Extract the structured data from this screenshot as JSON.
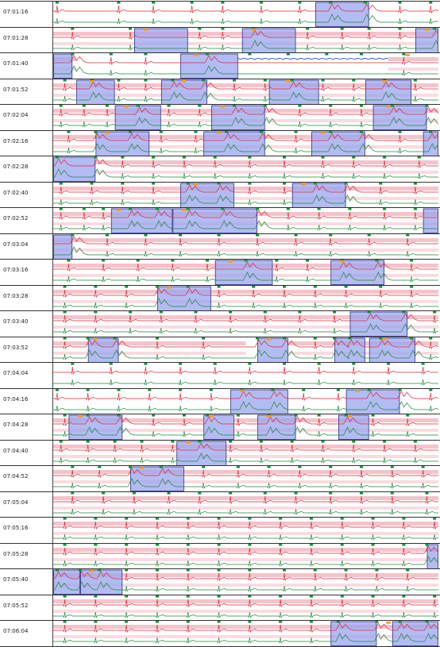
{
  "colors": {
    "background": "#ffffff",
    "pink_band": "#f6c3cb",
    "red_trace": "#e02a35",
    "green_trace": "#1e8a3a",
    "blue_trace": "#2438c8",
    "highlight_fill": "#9aa4ef",
    "highlight_border": "#2a2f8c",
    "beat_marker": "#0a9a35",
    "event_marker": "#f59a1a"
  },
  "rows": [
    {
      "time": "07:01:16",
      "beats": [
        0.01,
        0.17,
        0.26,
        0.36,
        0.44,
        0.54,
        0.64,
        0.72,
        0.81,
        0.9,
        0.98
      ],
      "highlights": [
        [
          0.68,
          0.82
        ]
      ],
      "events": [],
      "bands": []
    },
    {
      "time": "07:01:28",
      "beats": [
        0.05,
        0.2,
        0.38,
        0.44,
        0.52,
        0.66,
        0.75,
        0.82,
        0.9,
        0.99
      ],
      "highlights": [
        [
          0.21,
          0.35
        ],
        [
          0.49,
          0.63
        ],
        [
          0.94,
          1.0
        ]
      ],
      "events": [
        0.24,
        0.52,
        0.97
      ],
      "bands": [
        [
          0,
          1
        ]
      ]
    },
    {
      "time": "07:01:40",
      "beats": [
        0.05,
        0.15,
        0.24,
        0.4,
        0.51,
        0.61,
        0.71,
        0.8,
        0.91
      ],
      "highlights": [
        [
          0,
          0.05
        ],
        [
          0.33,
          0.48
        ]
      ],
      "events": [
        0.37,
        0.92
      ],
      "bands": [
        [
          0,
          0.06
        ],
        [
          0.87,
          1
        ]
      ],
      "flat": [
        0.48,
        0.87
      ]
    },
    {
      "time": "07:01:52",
      "beats": [
        0.03,
        0.1,
        0.17,
        0.24,
        0.31,
        0.39,
        0.47,
        0.55,
        0.62,
        0.7,
        0.78,
        0.86,
        0.94
      ],
      "highlights": [
        [
          0.06,
          0.16
        ],
        [
          0.28,
          0.4
        ],
        [
          0.56,
          0.69
        ],
        [
          0.81,
          0.93
        ]
      ],
      "events": [
        0.1,
        0.34,
        0.61,
        0.86
      ],
      "bands": [
        [
          0,
          1
        ]
      ]
    },
    {
      "time": "07:02:04",
      "beats": [
        0.02,
        0.08,
        0.14,
        0.22,
        0.3,
        0.38,
        0.47,
        0.55,
        0.64,
        0.72,
        0.8,
        0.88,
        0.97
      ],
      "highlights": [
        [
          0.16,
          0.28
        ],
        [
          0.41,
          0.55
        ],
        [
          0.83,
          0.97
        ]
      ],
      "events": [
        0.19,
        0.44,
        0.87
      ],
      "bands": [
        [
          0,
          1
        ]
      ]
    },
    {
      "time": "07:02:16",
      "beats": [
        0.04,
        0.11,
        0.2,
        0.28,
        0.37,
        0.45,
        0.54,
        0.63,
        0.72,
        0.8,
        0.9,
        0.98
      ],
      "highlights": [
        [
          0.11,
          0.25
        ],
        [
          0.39,
          0.55
        ],
        [
          0.67,
          0.81
        ],
        [
          0.96,
          1.0
        ]
      ],
      "events": [
        0.14,
        0.43,
        0.7
      ],
      "bands": [
        [
          0,
          1
        ]
      ]
    },
    {
      "time": "07:02:28",
      "beats": [
        0.01,
        0.11,
        0.18,
        0.26,
        0.34,
        0.42,
        0.51,
        0.6,
        0.7,
        0.78,
        0.86,
        0.95
      ],
      "highlights": [
        [
          0,
          0.11
        ]
      ],
      "events": [],
      "bands": [
        [
          0.11,
          1
        ]
      ]
    },
    {
      "time": "07:02:40",
      "beats": [
        0.02,
        0.1,
        0.18,
        0.26,
        0.35,
        0.43,
        0.51,
        0.6,
        0.68,
        0.76,
        0.85,
        0.94
      ],
      "highlights": [
        [
          0.33,
          0.47
        ],
        [
          0.62,
          0.76
        ]
      ],
      "events": [
        0.37,
        0.65
      ],
      "bands": [
        [
          0,
          1
        ]
      ]
    },
    {
      "time": "07:02:52",
      "beats": [
        0.02,
        0.08,
        0.13,
        0.2,
        0.27,
        0.35,
        0.44,
        0.53,
        0.61,
        0.69,
        0.77,
        0.86,
        0.94
      ],
      "highlights": [
        [
          0.15,
          0.31
        ],
        [
          0.31,
          0.53
        ],
        [
          0.96,
          1.0
        ]
      ],
      "events": [
        0.17,
        0.34
      ],
      "bands": [
        [
          0,
          1
        ]
      ]
    },
    {
      "time": "07:03:04",
      "beats": [
        0.05,
        0.14,
        0.24,
        0.33,
        0.43,
        0.53,
        0.63,
        0.72,
        0.82,
        0.92
      ],
      "highlights": [
        [
          0,
          0.05
        ]
      ],
      "events": [],
      "bands": [
        [
          0,
          1
        ]
      ]
    },
    {
      "time": "07:03:16",
      "beats": [
        0.04,
        0.13,
        0.22,
        0.31,
        0.4,
        0.5,
        0.58,
        0.66,
        0.75,
        0.84,
        0.93
      ],
      "highlights": [
        [
          0.42,
          0.57
        ],
        [
          0.72,
          0.86
        ]
      ],
      "events": [
        0.46,
        0.75
      ],
      "bands": [
        [
          0,
          1
        ]
      ]
    },
    {
      "time": "07:03:28",
      "beats": [
        0.03,
        0.11,
        0.19,
        0.27,
        0.35,
        0.43,
        0.52,
        0.6,
        0.68,
        0.76,
        0.85,
        0.93
      ],
      "highlights": [
        [
          0.27,
          0.41
        ]
      ],
      "events": [
        0.3
      ],
      "bands": [
        [
          0,
          1
        ]
      ]
    },
    {
      "time": "07:03:40",
      "beats": [
        0.03,
        0.11,
        0.2,
        0.28,
        0.37,
        0.46,
        0.55,
        0.64,
        0.73,
        0.82,
        0.91,
        0.99
      ],
      "highlights": [
        [
          0.77,
          0.92
        ]
      ],
      "events": [],
      "bands": [
        [
          0,
          1
        ]
      ]
    },
    {
      "time": "07:03:52",
      "beats": [
        0.03,
        0.09,
        0.16,
        0.27,
        0.39,
        0.53,
        0.6,
        0.68,
        0.73,
        0.77,
        0.85,
        0.93,
        0.98
      ],
      "highlights": [
        [
          0.09,
          0.17
        ],
        [
          0.53,
          0.61
        ],
        [
          0.73,
          0.81
        ],
        [
          0.82,
          0.94
        ]
      ],
      "events": [
        0.11,
        0.56,
        0.86
      ],
      "bands": [
        [
          0,
          0.5
        ],
        [
          0.61,
          1
        ]
      ]
    },
    {
      "time": "07:04:04",
      "beats": [
        0.05,
        0.15,
        0.24,
        0.33,
        0.42,
        0.51,
        0.6,
        0.69,
        0.78,
        0.87,
        0.96
      ],
      "highlights": [],
      "events": [],
      "bands": []
    },
    {
      "time": "07:04:16",
      "beats": [
        0.01,
        0.09,
        0.17,
        0.25,
        0.33,
        0.41,
        0.49,
        0.57,
        0.65,
        0.74,
        0.82,
        0.9,
        0.98
      ],
      "highlights": [
        [
          0.46,
          0.61
        ],
        [
          0.76,
          0.9
        ]
      ],
      "events": [
        0.49,
        0.79
      ],
      "bands": []
    },
    {
      "time": "07:04:28",
      "beats": [
        0.03,
        0.09,
        0.17,
        0.26,
        0.34,
        0.4,
        0.48,
        0.56,
        0.63,
        0.69,
        0.76,
        0.83,
        0.92
      ],
      "highlights": [
        [
          0.04,
          0.18
        ],
        [
          0.39,
          0.47
        ],
        [
          0.53,
          0.63
        ],
        [
          0.74,
          0.82
        ]
      ],
      "events": [
        0.07,
        0.41,
        0.56,
        0.77
      ],
      "bands": [
        [
          0,
          0.39
        ],
        [
          0.47,
          1
        ]
      ]
    },
    {
      "time": "07:04:40",
      "beats": [
        0.02,
        0.09,
        0.16,
        0.23,
        0.31,
        0.38,
        0.46,
        0.54,
        0.62,
        0.7,
        0.78,
        0.86,
        0.94
      ],
      "highlights": [
        [
          0.32,
          0.45
        ]
      ],
      "events": [
        0.35
      ],
      "bands": [
        [
          0,
          1
        ]
      ]
    },
    {
      "time": "07:04:52",
      "beats": [
        0.05,
        0.12,
        0.2,
        0.28,
        0.39,
        0.48,
        0.56,
        0.64,
        0.72,
        0.8,
        0.88,
        0.96
      ],
      "highlights": [
        [
          0.2,
          0.34
        ]
      ],
      "events": [
        0.23
      ],
      "bands": [
        [
          0,
          1
        ]
      ]
    },
    {
      "time": "07:05:04",
      "beats": [
        0.05,
        0.13,
        0.21,
        0.3,
        0.38,
        0.46,
        0.55,
        0.63,
        0.72,
        0.8,
        0.88,
        0.97
      ],
      "highlights": [],
      "events": [],
      "bands": [
        [
          0,
          1
        ]
      ]
    },
    {
      "time": "07:05:16",
      "beats": [
        0.03,
        0.11,
        0.19,
        0.27,
        0.35,
        0.43,
        0.51,
        0.59,
        0.67,
        0.75,
        0.83,
        0.91,
        0.99
      ],
      "highlights": [],
      "events": [],
      "bands": [
        [
          0,
          1
        ]
      ]
    },
    {
      "time": "07:05:28",
      "beats": [
        0.03,
        0.11,
        0.19,
        0.27,
        0.35,
        0.43,
        0.51,
        0.59,
        0.67,
        0.75,
        0.83,
        0.91,
        0.97
      ],
      "highlights": [
        [
          0.97,
          1.0
        ]
      ],
      "events": [],
      "bands": [
        [
          0,
          1
        ]
      ]
    },
    {
      "time": "07:05:40",
      "beats": [
        0.01,
        0.07,
        0.12,
        0.19,
        0.27,
        0.35,
        0.43,
        0.51,
        0.6,
        0.68,
        0.76,
        0.84,
        0.92
      ],
      "highlights": [
        [
          0,
          0.07
        ],
        [
          0.07,
          0.18
        ]
      ],
      "events": [
        0.1
      ],
      "bands": [
        [
          0,
          1
        ]
      ]
    },
    {
      "time": "07:05:52",
      "beats": [
        0.03,
        0.11,
        0.19,
        0.27,
        0.35,
        0.43,
        0.51,
        0.59,
        0.67,
        0.75,
        0.83,
        0.91,
        0.99
      ],
      "highlights": [],
      "events": [],
      "bands": [
        [
          0,
          1
        ]
      ]
    },
    {
      "time": "07:06:04",
      "beats": [
        0.03,
        0.11,
        0.19,
        0.27,
        0.35,
        0.43,
        0.51,
        0.59,
        0.67,
        0.74,
        0.84,
        0.9,
        0.97
      ],
      "highlights": [
        [
          0.72,
          0.84
        ],
        [
          0.88,
          1.0
        ]
      ],
      "events": [
        0.87
      ],
      "bands": [
        [
          0,
          1
        ]
      ]
    }
  ]
}
